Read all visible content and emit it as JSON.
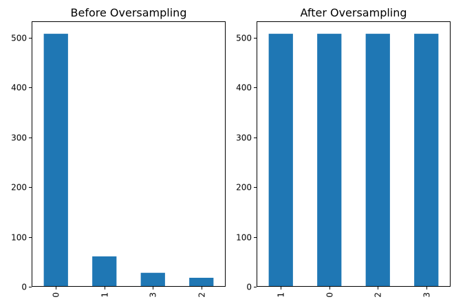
{
  "chart_data": [
    {
      "type": "bar",
      "title": "Before Oversampling",
      "categories": [
        "0",
        "1",
        "3",
        "2"
      ],
      "values": [
        508,
        61,
        28,
        18
      ],
      "xlabel": "",
      "ylabel": "",
      "ylim": [
        0,
        533
      ],
      "yticks": [
        0,
        100,
        200,
        300,
        400,
        500
      ],
      "bar_color": "#1f77b4",
      "grid": false,
      "legend": "none"
    },
    {
      "type": "bar",
      "title": "After Oversampling",
      "categories": [
        "1",
        "0",
        "2",
        "3"
      ],
      "values": [
        508,
        508,
        508,
        508
      ],
      "xlabel": "",
      "ylabel": "",
      "ylim": [
        0,
        533
      ],
      "yticks": [
        0,
        100,
        200,
        300,
        400,
        500
      ],
      "bar_color": "#1f77b4",
      "grid": false,
      "legend": "none"
    }
  ]
}
